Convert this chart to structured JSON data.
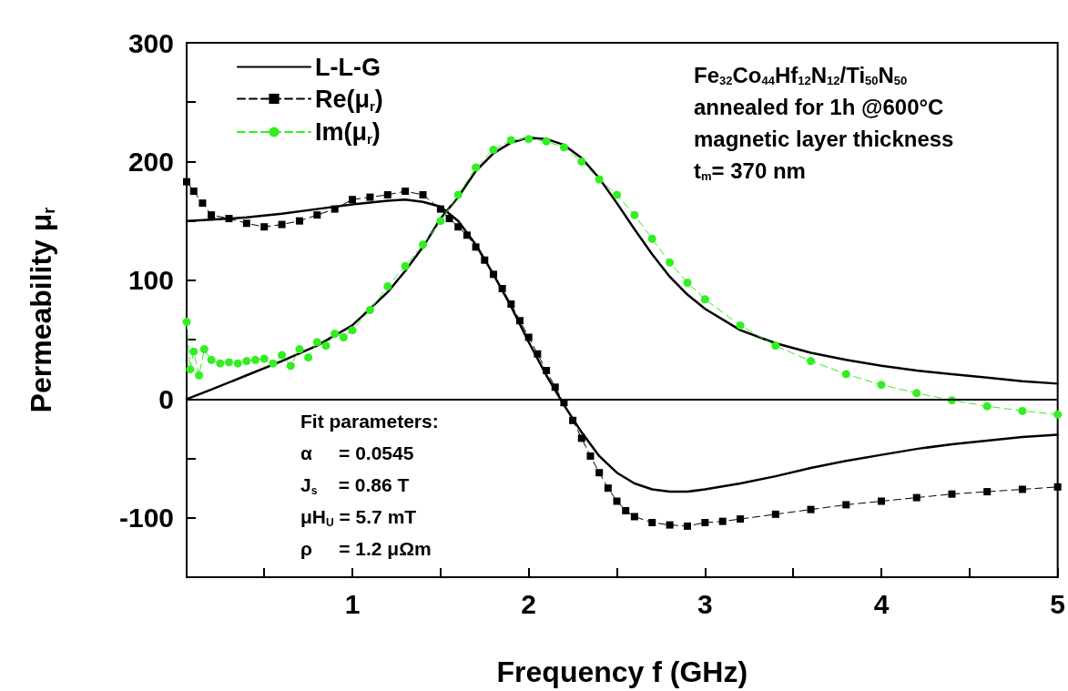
{
  "chart_data": {
    "type": "line",
    "xlabel": "Frequency f (GHz)",
    "ylabel": "Permeability μ$_{r}$",
    "xlim": [
      0.06,
      5
    ],
    "ylim": [
      -150,
      300
    ],
    "xticks": [
      {
        "value": 0.5,
        "label": null
      },
      1,
      {
        "value": 1.5,
        "label": null
      },
      2,
      {
        "value": 2.5,
        "label": null
      },
      3,
      {
        "value": 3.5,
        "label": null
      },
      4,
      {
        "value": 4.5,
        "label": null
      },
      5
    ],
    "yticks": [
      -100,
      {
        "value": -50,
        "label": null
      },
      0,
      {
        "value": 50,
        "label": null
      },
      100,
      {
        "value": 150,
        "label": null
      },
      200,
      {
        "value": 250,
        "label": null
      },
      300
    ],
    "grid": false,
    "legend": "top left",
    "ref_lines": [
      {
        "axis": "y",
        "value": 0,
        "label": null,
        "color": "#000000",
        "line_style": "solid"
      }
    ],
    "annotations": [
      "Fe$_{32}$Co$_{44}$Hf$_{12}$N$_{12}$/Ti$_{50}$N$_{50}$",
      "annealed for 1h @600°C",
      "magnetic layer thickness",
      "t$_{m}$= 370 nm",
      "Fit parameters:",
      "α     = 0.0545",
      "J$_{s}$    = 0.86 T",
      "μH$_{U}$ = 5.7 mT",
      "ρ     = 1.2 μΩm"
    ],
    "series": [
      {
        "name": "L-L-G",
        "color": "#000000",
        "marker": "none",
        "line_style": "solid",
        "x": [
          0.06,
          0.2,
          0.4,
          0.6,
          0.8,
          1.0,
          1.2,
          1.3,
          1.4,
          1.5,
          1.6,
          1.7,
          1.8,
          1.9,
          2.0,
          2.1,
          2.2,
          2.3,
          2.4,
          2.5,
          2.6,
          2.7,
          2.8,
          2.9,
          3.0,
          3.2,
          3.4,
          3.6,
          3.8,
          4.0,
          4.2,
          4.4,
          4.6,
          4.8,
          5.0
        ],
        "values": [
          150,
          151,
          153,
          156,
          160,
          164,
          167,
          168,
          166,
          162,
          150,
          130,
          105,
          78,
          48,
          20,
          -5,
          -28,
          -48,
          -62,
          -71,
          -76,
          -78,
          -78,
          -76,
          -71,
          -65,
          -58,
          -52,
          -47,
          -42,
          -38,
          -35,
          -32,
          -30
        ]
      },
      {
        "color": "#000000",
        "marker": "none",
        "line_style": "solid",
        "x": [
          0.06,
          0.2,
          0.4,
          0.6,
          0.8,
          1.0,
          1.2,
          1.3,
          1.4,
          1.5,
          1.6,
          1.7,
          1.8,
          1.9,
          2.0,
          2.1,
          2.2,
          2.3,
          2.4,
          2.5,
          2.6,
          2.7,
          2.8,
          2.9,
          3.0,
          3.2,
          3.4,
          3.6,
          3.8,
          4.0,
          4.2,
          4.4,
          4.6,
          4.8,
          5.0
        ],
        "values": [
          0,
          8,
          20,
          32,
          45,
          62,
          90,
          108,
          128,
          152,
          170,
          192,
          207,
          216,
          220,
          219,
          214,
          203,
          186,
          165,
          143,
          122,
          103,
          88,
          76,
          58,
          47,
          39,
          33,
          28,
          24,
          21,
          18,
          15,
          13
        ]
      },
      {
        "name": "Re(μ$_{r}$)",
        "color": "#000000",
        "marker": "square",
        "line_style": "dashed",
        "x": [
          0.06,
          0.1,
          0.15,
          0.2,
          0.3,
          0.4,
          0.5,
          0.6,
          0.7,
          0.8,
          0.9,
          1.0,
          1.1,
          1.2,
          1.3,
          1.4,
          1.5,
          1.55,
          1.6,
          1.65,
          1.7,
          1.75,
          1.8,
          1.85,
          1.9,
          1.95,
          2.0,
          2.05,
          2.1,
          2.15,
          2.2,
          2.25,
          2.3,
          2.35,
          2.4,
          2.45,
          2.5,
          2.55,
          2.6,
          2.7,
          2.8,
          2.9,
          3.0,
          3.1,
          3.2,
          3.4,
          3.6,
          3.8,
          4.0,
          4.2,
          4.4,
          4.6,
          4.8,
          5.0
        ],
        "values": [
          183,
          175,
          165,
          155,
          152,
          148,
          145,
          147,
          150,
          155,
          160,
          168,
          170,
          172,
          175,
          172,
          160,
          152,
          145,
          138,
          128,
          117,
          105,
          93,
          80,
          66,
          52,
          38,
          24,
          10,
          -3,
          -18,
          -33,
          -48,
          -62,
          -75,
          -86,
          -94,
          -99,
          -104,
          -106,
          -107,
          -104,
          -103,
          -101,
          -97,
          -93,
          -89,
          -86,
          -83,
          -80,
          -78,
          -76,
          -74
        ]
      },
      {
        "name": "Im(μ$_{r}$)",
        "color": "#33ee22",
        "marker": "circle",
        "line_style": "dashed",
        "x": [
          0.06,
          0.08,
          0.1,
          0.13,
          0.16,
          0.2,
          0.25,
          0.3,
          0.35,
          0.4,
          0.45,
          0.5,
          0.55,
          0.6,
          0.65,
          0.7,
          0.75,
          0.8,
          0.85,
          0.9,
          0.95,
          1.0,
          1.1,
          1.2,
          1.3,
          1.4,
          1.5,
          1.6,
          1.7,
          1.8,
          1.9,
          2.0,
          2.1,
          2.2,
          2.3,
          2.4,
          2.5,
          2.6,
          2.7,
          2.8,
          2.9,
          3.0,
          3.2,
          3.4,
          3.6,
          3.8,
          4.0,
          4.2,
          4.4,
          4.6,
          4.8,
          5.0
        ],
        "values": [
          65,
          25,
          40,
          20,
          42,
          33,
          30,
          31,
          30,
          32,
          33,
          34,
          30,
          37,
          28,
          42,
          35,
          48,
          45,
          55,
          52,
          58,
          75,
          95,
          112,
          130,
          150,
          172,
          195,
          210,
          218,
          219,
          217,
          212,
          200,
          185,
          172,
          155,
          135,
          115,
          98,
          84,
          62,
          45,
          32,
          21,
          12,
          5,
          -1,
          -6,
          -10,
          -13
        ]
      }
    ]
  }
}
